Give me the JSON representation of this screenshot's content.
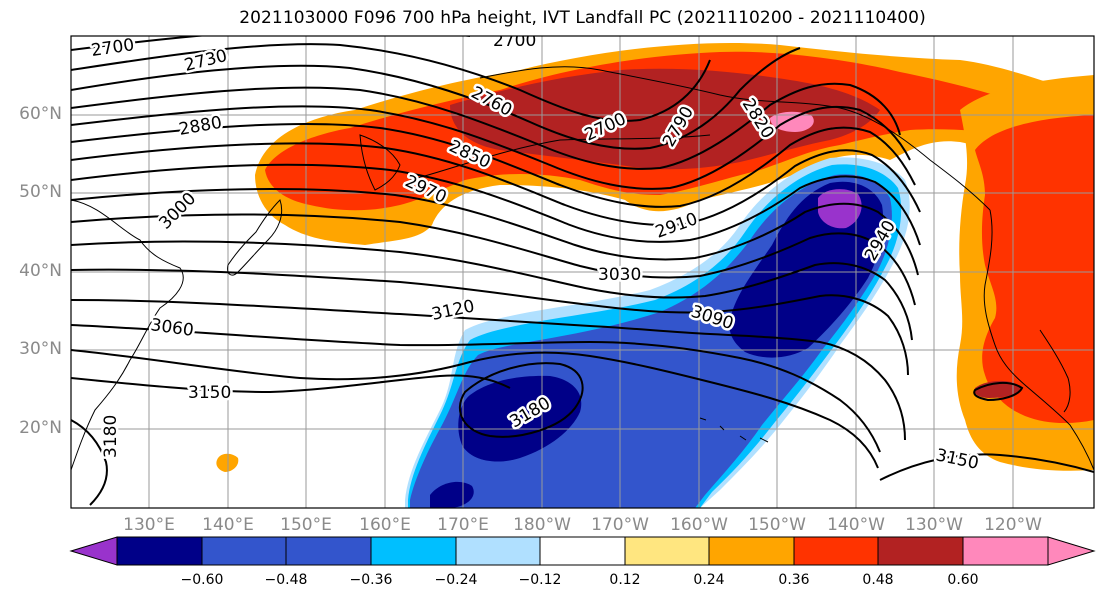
{
  "title": "2021103000 F096 700 hPa height, IVT Landfall PC (2021110200 - 2021110400)",
  "colors": {
    "n060": "#9933cc",
    "n048": "#000088",
    "n036": "#3355cc",
    "n024": "#00bfff",
    "n012": "#b0e0ff",
    "zero": "#ffffff",
    "p012": "#ffe680",
    "p024": "#ffa500",
    "p036": "#ff3300",
    "p048": "#b22222",
    "p060": "#ff88bb"
  },
  "lat_labels": [
    "60°N",
    "50°N",
    "40°N",
    "30°N",
    "20°N"
  ],
  "lon_labels": [
    "130°E",
    "140°E",
    "150°E",
    "160°E",
    "170°E",
    "180°W",
    "170°W",
    "160°W",
    "150°W",
    "140°W",
    "130°W",
    "120°W"
  ],
  "contour_labels": [
    "2700",
    "2730",
    "2700",
    "2760",
    "2700",
    "2880",
    "2850",
    "2790",
    "2820",
    "2970",
    "3000",
    "2910",
    "2940",
    "3030",
    "3120",
    "3090",
    "3060",
    "3150",
    "3180",
    "3180",
    "3150"
  ],
  "colorbar": {
    "ticks": [
      "−0.60",
      "−0.48",
      "−0.36",
      "−0.24",
      "−0.12",
      "0.12",
      "0.24",
      "0.36",
      "0.48",
      "0.60"
    ],
    "segment_colors": [
      "#9933cc",
      "#000088",
      "#3355cc",
      "#3355cc",
      "#00bfff",
      "#b0e0ff",
      "#ffffff",
      "#ffe680",
      "#ffa500",
      "#ff3300",
      "#b22222",
      "#ff88bb"
    ]
  }
}
